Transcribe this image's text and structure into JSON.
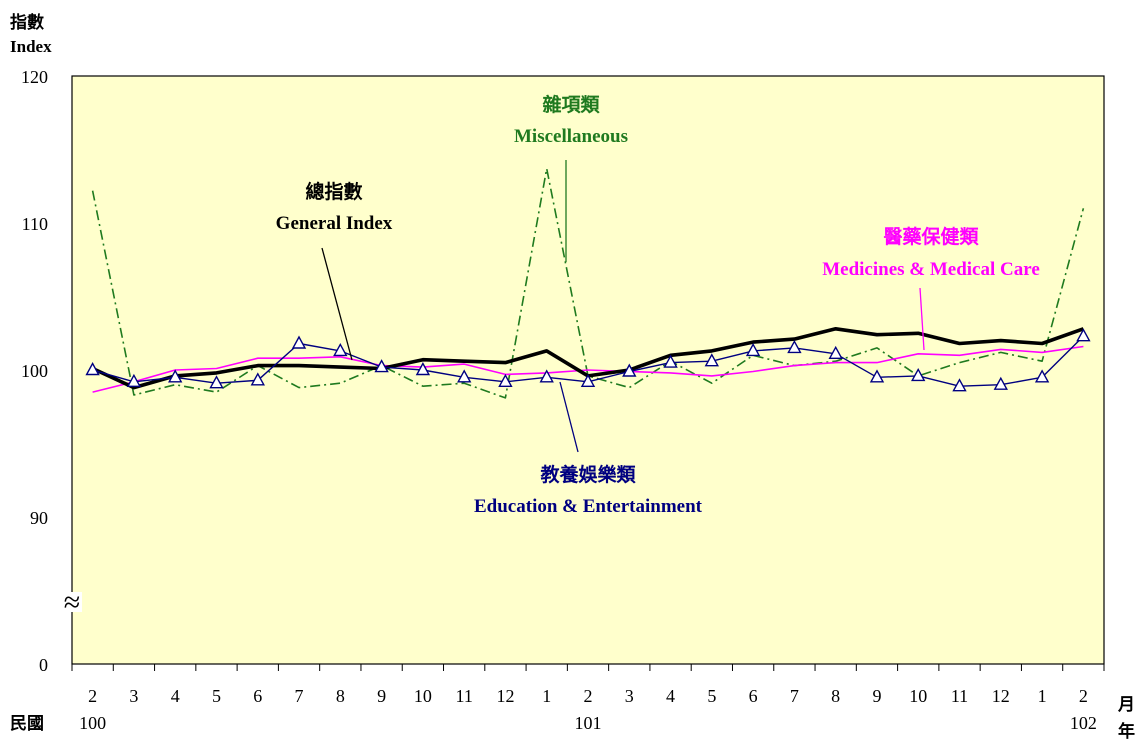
{
  "chart_data": {
    "type": "line",
    "ylabel_zh": "指數",
    "ylabel_en": "Index",
    "y_ticks": [
      "120",
      "110",
      "100",
      "90",
      "0"
    ],
    "axis_break_symbol": "≈",
    "x_month_labels": [
      "2",
      "3",
      "4",
      "5",
      "6",
      "7",
      "8",
      "9",
      "10",
      "11",
      "12",
      "1",
      "2",
      "3",
      "4",
      "5",
      "6",
      "7",
      "8",
      "9",
      "10",
      "11",
      "12",
      "1",
      "2"
    ],
    "x_year_labels": [
      {
        "label": "100",
        "index": 0
      },
      {
        "label": "101",
        "index": 12
      },
      {
        "label": "102",
        "index": 24
      }
    ],
    "x_prefix_label": "民國",
    "x_unit_month": "月",
    "x_unit_year": "年",
    "series": [
      {
        "name_zh": "總指數",
        "name_en": "General Index",
        "color": "#000000",
        "style": "solid-thick",
        "values": [
          100.1,
          98.8,
          99.6,
          99.8,
          100.3,
          100.3,
          100.2,
          100.1,
          100.7,
          100.6,
          100.5,
          101.3,
          99.6,
          100.0,
          101.0,
          101.3,
          101.9,
          102.1,
          102.8,
          102.4,
          102.5,
          101.8,
          102.0,
          101.8,
          102.8
        ]
      },
      {
        "name_zh": "雜項類",
        "name_en": "Miscellaneous",
        "color": "#1f7a1f",
        "style": "dashdot",
        "values": [
          112.2,
          98.3,
          99.0,
          98.5,
          100.3,
          98.8,
          99.1,
          100.3,
          98.9,
          99.1,
          98.1,
          113.7,
          99.6,
          98.8,
          100.6,
          99.1,
          101.0,
          100.3,
          100.6,
          101.5,
          99.6,
          100.5,
          101.2,
          100.6,
          111.0
        ]
      },
      {
        "name_zh": "醫藥保健類",
        "name_en": "Medicines & Medical Care",
        "color": "#ff00ff",
        "style": "solid",
        "values": [
          98.5,
          99.2,
          100.0,
          100.1,
          100.8,
          100.8,
          100.9,
          100.3,
          100.2,
          100.4,
          99.7,
          99.8,
          100.0,
          99.9,
          99.8,
          99.6,
          99.9,
          100.3,
          100.5,
          100.5,
          101.1,
          101.0,
          101.4,
          101.2,
          101.6
        ]
      },
      {
        "name_zh": "教養娛樂類",
        "name_en": "Education & Entertainment",
        "color": "#000080",
        "style": "solid-triangle",
        "values": [
          100.0,
          99.2,
          99.5,
          99.1,
          99.3,
          101.8,
          101.3,
          100.2,
          100.0,
          99.5,
          99.2,
          99.5,
          99.2,
          99.9,
          100.5,
          100.6,
          101.3,
          101.5,
          101.1,
          99.5,
          99.6,
          98.9,
          99.0,
          99.5,
          102.3
        ]
      }
    ],
    "ylim_displayed": [
      90,
      120
    ],
    "plot_background": "#ffffcc"
  }
}
